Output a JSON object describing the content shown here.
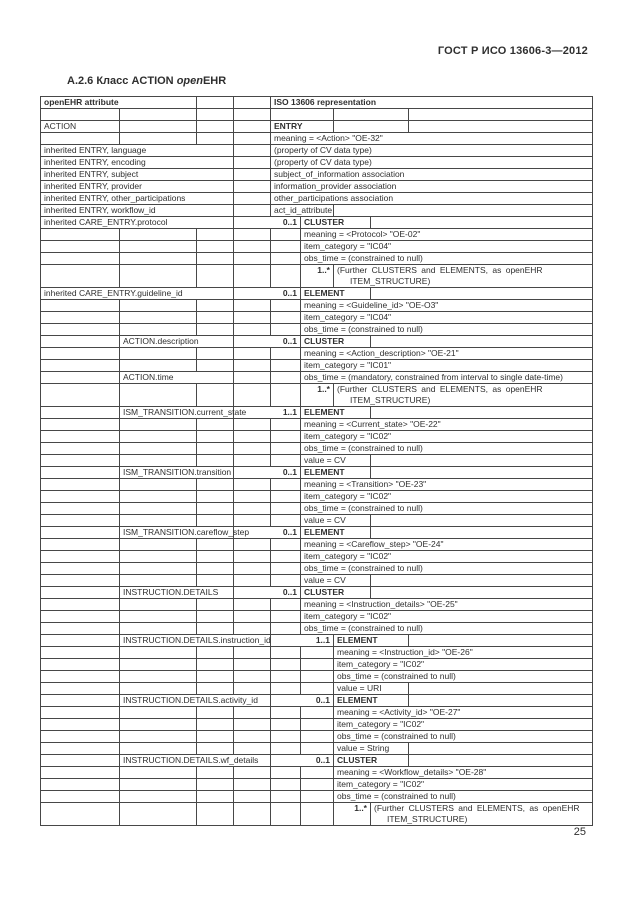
{
  "page": {
    "header": "ГОСТ Р ИСО 13606-3—2012",
    "title_prefix": "А.2.6 Класс ACTION ",
    "title_italic": "open",
    "title_suffix": "EHR",
    "number": "25"
  },
  "rows": [
    {
      "t": "h1",
      "left": "openEHR attribute",
      "right": "ISO 13606 representation"
    },
    {
      "t": "h2"
    },
    {
      "t": "action",
      "label": "ACTION",
      "type": "ENTRY"
    },
    {
      "t": "val0",
      "text": "meaning = <Action> \"OE-32\""
    },
    {
      "t": "inh",
      "label": "inherited ENTRY, language",
      "text": "(property of CV data type)"
    },
    {
      "t": "inh",
      "label": "inherited ENTRY, encoding",
      "text": "(property of CV data type)"
    },
    {
      "t": "inh",
      "label": "inherited ENTRY, subject",
      "text": "subject_of_information association"
    },
    {
      "t": "inh",
      "label": "inherited ENTRY, provider",
      "text": "information_provider association"
    },
    {
      "t": "inh",
      "label": "inherited ENTRY, other_participations",
      "text": "other_participations association"
    },
    {
      "t": "inh2",
      "label": "inherited ENTRY, workflow_id",
      "text": "act_id_attribute"
    },
    {
      "t": "L1",
      "label": "inherited CARE_ENTRY.protocol",
      "card": "0..1",
      "type": "CLUSTER"
    },
    {
      "t": "val1",
      "text": "meaning = <Protocol> \"OE-02\""
    },
    {
      "t": "val1",
      "text": "item_category = \"IC04\""
    },
    {
      "t": "val1",
      "text": "obs_time = (constrained to null)"
    },
    {
      "t": "fur1",
      "card": "1..*",
      "text": "(Further CLUSTERS and ELEMENTS, as openEHR",
      "text2": "ITEM_STRUCTURE)"
    },
    {
      "t": "L1",
      "label": "inherited CARE_ENTRY.guideline_id",
      "card": "0..1",
      "type": "ELEMENT"
    },
    {
      "t": "val1",
      "text": "meaning = <Guideline_id> \"OE-O3\""
    },
    {
      "t": "val1",
      "text": "item_category = \"IC04\""
    },
    {
      "t": "val1",
      "text": "obs_time = (constrained to null)"
    },
    {
      "t": "L2",
      "label": "ACTION.description",
      "card": "0..1",
      "type": "CLUSTER"
    },
    {
      "t": "val1",
      "text": "meaning = <Action_description> \"OE-21\""
    },
    {
      "t": "val1",
      "text": "item_category = \"IC01\""
    },
    {
      "t": "L2time",
      "label": "ACTION.time",
      "text": "obs_time = (mandatory, constrained from interval to single date-time)"
    },
    {
      "t": "fur1",
      "card": "1..*",
      "text": "(Further CLUSTERS and ELEMENTS, as openEHR",
      "text2": "ITEM_STRUCTURE)"
    },
    {
      "t": "L2",
      "label": "ISM_TRANSITION.current_state",
      "card": "1..1",
      "type": "ELEMENT"
    },
    {
      "t": "val1",
      "text": "meaning = <Current_state> \"OE-22\""
    },
    {
      "t": "val1",
      "text": "item_category = \"IC02\""
    },
    {
      "t": "val1",
      "text": "obs_time = (constrained to null)"
    },
    {
      "t": "val1s",
      "text": "value = CV"
    },
    {
      "t": "L2",
      "label": "ISM_TRANSITION.transition",
      "card": "0..1",
      "type": "ELEMENT"
    },
    {
      "t": "val1",
      "text": "meaning = <Transition> \"OE-23\""
    },
    {
      "t": "val1",
      "text": "item_category = \"IC02\""
    },
    {
      "t": "val1",
      "text": "obs_time = (constrained to null)"
    },
    {
      "t": "val1s",
      "text": "value = CV"
    },
    {
      "t": "L2",
      "label": "ISM_TRANSITION.careflow_step",
      "card": "0..1",
      "type": "ELEMENT"
    },
    {
      "t": "val1",
      "text": "meaning = <Careflow_step> \"OE-24\""
    },
    {
      "t": "val1",
      "text": "item_category = \"IC02\""
    },
    {
      "t": "val1",
      "text": "obs_time = (constrained to null)"
    },
    {
      "t": "val1s",
      "text": "value = CV"
    },
    {
      "t": "L2",
      "label": "INSTRUCTION.DETAILS",
      "card": "0..1",
      "type": "CLUSTER"
    },
    {
      "t": "val1",
      "text": "meaning = <Instruction_details> \"OE-25\""
    },
    {
      "t": "val1",
      "text": "item_category = \"IC02\""
    },
    {
      "t": "val1",
      "text": "obs_time = (constrained to null)"
    },
    {
      "t": "L3",
      "label": "INSTRUCTION.DETAILS.instruction_id",
      "card": "1..1",
      "type": "ELEMENT"
    },
    {
      "t": "val3",
      "text": "meaning = <Instruction_id> \"OE-26\""
    },
    {
      "t": "val3",
      "text": "item_category = \"IC02\""
    },
    {
      "t": "val3",
      "text": "obs_time = (constrained to null)"
    },
    {
      "t": "val3s",
      "text": "value = URI"
    },
    {
      "t": "L3",
      "label": "INSTRUCTION.DETAILS.activity_id",
      "card": "0..1",
      "type": "ELEMENT"
    },
    {
      "t": "val3",
      "text": "meaning = <Activity_id> \"OE-27\""
    },
    {
      "t": "val3",
      "text": "item_category = \"IC02\""
    },
    {
      "t": "val3",
      "text": "obs_time = (constrained to null)"
    },
    {
      "t": "val3s",
      "text": "value = String"
    },
    {
      "t": "L3",
      "label": "INSTRUCTION.DETAILS.wf_details",
      "card": "0..1",
      "type": "CLUSTER"
    },
    {
      "t": "val3",
      "text": "meaning = <Workflow_details> \"OE-28\""
    },
    {
      "t": "val3",
      "text": "item_category = \"IC02\""
    },
    {
      "t": "val3",
      "text": "obs_time = (constrained to null)"
    },
    {
      "t": "fur3",
      "card": "1..*",
      "text": "(Further CLUSTERS and ELEMENTS, as openEHR",
      "text2": "ITEM_STRUCTURE)"
    }
  ]
}
